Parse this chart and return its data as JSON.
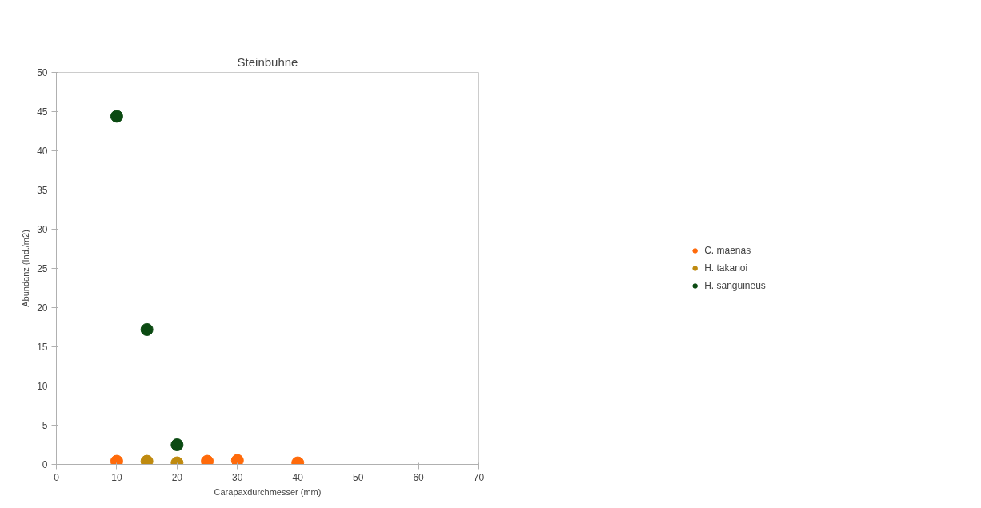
{
  "chart_data": {
    "type": "scatter",
    "title": "Steinbuhne",
    "xlabel": "Carapaxdurchmesser (mm)",
    "ylabel": "Abundanz (Ind./m2)",
    "xlim": [
      0,
      70
    ],
    "xticks": [
      0,
      10,
      20,
      30,
      40,
      50,
      60,
      70
    ],
    "ylim": [
      0,
      50
    ],
    "yticks": [
      0,
      5,
      10,
      15,
      20,
      25,
      30,
      35,
      40,
      45,
      50
    ],
    "grid": false,
    "legend": "right",
    "marker": "circle",
    "series": [
      {
        "name": "C. maenas",
        "color": "#ff6a0a",
        "x": [
          10,
          25,
          30,
          40
        ],
        "values": [
          0.4,
          0.4,
          0.5,
          0.2
        ]
      },
      {
        "name": "H. takanoi",
        "color": "#bf8a0f",
        "x": [
          15,
          20
        ],
        "values": [
          0.4,
          0.2
        ]
      },
      {
        "name": "H. sanguineus",
        "color": "#0b4a12",
        "x": [
          10,
          15,
          20
        ],
        "values": [
          44.4,
          17.2,
          2.5
        ]
      }
    ]
  }
}
